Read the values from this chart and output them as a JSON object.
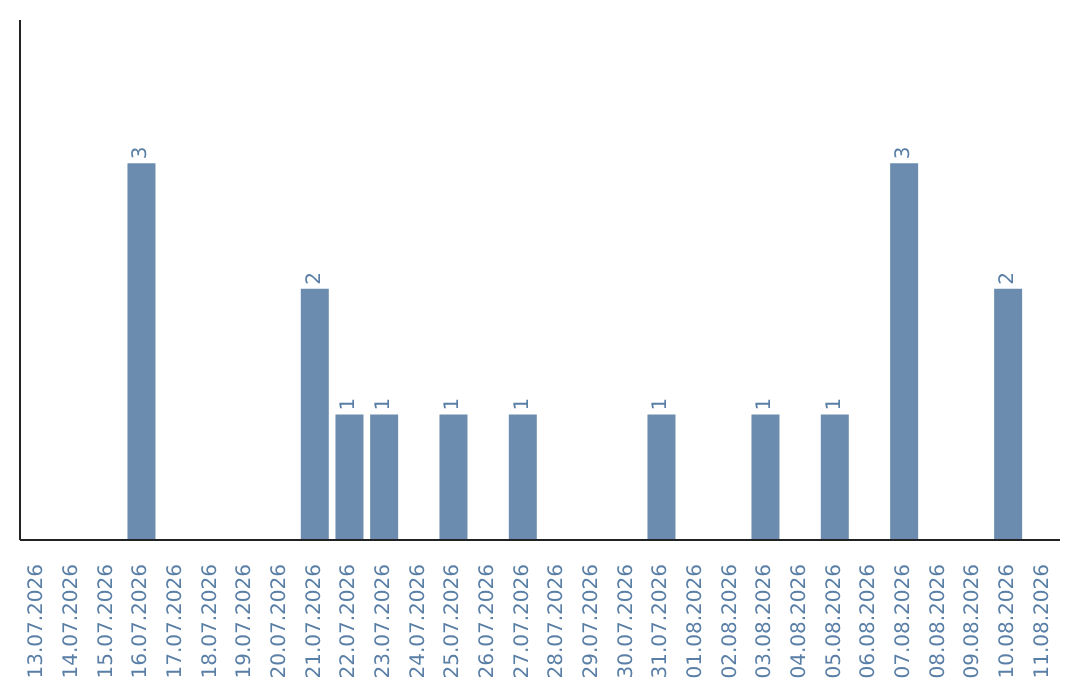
{
  "chart_data": {
    "type": "bar",
    "categories": [
      "13.07.2026",
      "14.07.2026",
      "15.07.2026",
      "16.07.2026",
      "17.07.2026",
      "18.07.2026",
      "19.07.2026",
      "20.07.2026",
      "21.07.2026",
      "22.07.2026",
      "23.07.2026",
      "24.07.2026",
      "25.07.2026",
      "26.07.2026",
      "27.07.2026",
      "28.07.2026",
      "29.07.2026",
      "30.07.2026",
      "31.07.2026",
      "01.08.2026",
      "02.08.2026",
      "03.08.2026",
      "04.08.2026",
      "05.08.2026",
      "06.08.2026",
      "07.08.2026",
      "08.08.2026",
      "09.08.2026",
      "10.08.2026",
      "11.08.2026"
    ],
    "values": [
      null,
      null,
      null,
      3,
      null,
      null,
      null,
      null,
      2,
      1,
      1,
      null,
      1,
      null,
      1,
      null,
      null,
      null,
      1,
      null,
      null,
      1,
      null,
      1,
      null,
      3,
      null,
      null,
      2,
      null
    ],
    "color": "#6b8cae",
    "data_labels": true,
    "tick_labels": "x"
  }
}
